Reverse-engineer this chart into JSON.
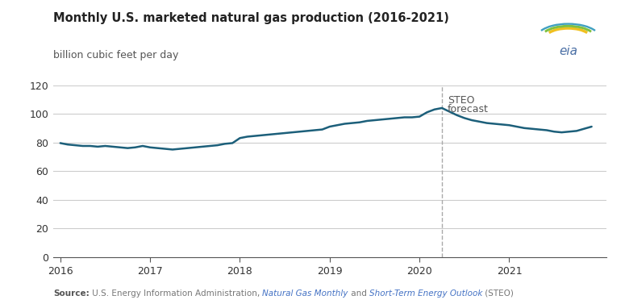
{
  "title": "Monthly U.S. marketed natural gas production (2016-2021)",
  "subtitle": "billion cubic feet per day",
  "line_color": "#1c5f7a",
  "background_color": "#ffffff",
  "grid_color": "#cccccc",
  "forecast_line_x": 2020.25,
  "forecast_label_line1": "STEO",
  "forecast_label_line2": "forecast",
  "ylim": [
    0,
    120
  ],
  "yticks": [
    0,
    20,
    40,
    60,
    80,
    100,
    120
  ],
  "xlim": [
    2015.92,
    2022.08
  ],
  "xticks": [
    2016,
    2017,
    2018,
    2019,
    2020,
    2021
  ],
  "data_x": [
    2016.0,
    2016.083,
    2016.167,
    2016.25,
    2016.333,
    2016.417,
    2016.5,
    2016.583,
    2016.667,
    2016.75,
    2016.833,
    2016.917,
    2017.0,
    2017.083,
    2017.167,
    2017.25,
    2017.333,
    2017.417,
    2017.5,
    2017.583,
    2017.667,
    2017.75,
    2017.833,
    2017.917,
    2018.0,
    2018.083,
    2018.167,
    2018.25,
    2018.333,
    2018.417,
    2018.5,
    2018.583,
    2018.667,
    2018.75,
    2018.833,
    2018.917,
    2019.0,
    2019.083,
    2019.167,
    2019.25,
    2019.333,
    2019.417,
    2019.5,
    2019.583,
    2019.667,
    2019.75,
    2019.833,
    2019.917,
    2020.0,
    2020.083,
    2020.167,
    2020.25,
    2020.333,
    2020.417,
    2020.5,
    2020.583,
    2020.667,
    2020.75,
    2020.833,
    2020.917,
    2021.0,
    2021.083,
    2021.167,
    2021.25,
    2021.333,
    2021.417,
    2021.5,
    2021.583,
    2021.667,
    2021.75,
    2021.833,
    2021.917
  ],
  "data_y": [
    79.5,
    78.5,
    78.0,
    77.5,
    77.5,
    77.0,
    77.5,
    77.0,
    76.5,
    76.0,
    76.5,
    77.5,
    76.5,
    76.0,
    75.5,
    75.0,
    75.5,
    76.0,
    76.5,
    77.0,
    77.5,
    78.0,
    79.0,
    79.5,
    83.0,
    84.0,
    84.5,
    85.0,
    85.5,
    86.0,
    86.5,
    87.0,
    87.5,
    88.0,
    88.5,
    89.0,
    91.0,
    92.0,
    93.0,
    93.5,
    94.0,
    95.0,
    95.5,
    96.0,
    96.5,
    97.0,
    97.5,
    97.5,
    98.0,
    101.0,
    103.0,
    104.0,
    101.5,
    99.0,
    97.0,
    95.5,
    94.5,
    93.5,
    93.0,
    92.5,
    92.0,
    91.0,
    90.0,
    89.5,
    89.0,
    88.5,
    87.5,
    87.0,
    87.5,
    88.0,
    89.5,
    91.0
  ],
  "source_parts": [
    {
      "text": "Source:",
      "color": "#555555",
      "bold": true,
      "italic": false
    },
    {
      "text": " U.S. Energy Information Administration, ",
      "color": "#777777",
      "bold": false,
      "italic": false
    },
    {
      "text": "Natural Gas Monthly",
      "color": "#4472c4",
      "bold": false,
      "italic": true
    },
    {
      "text": " and ",
      "color": "#777777",
      "bold": false,
      "italic": false
    },
    {
      "text": "Short-Term Energy Outlook",
      "color": "#4472c4",
      "bold": false,
      "italic": true
    },
    {
      "text": " (STEO)",
      "color": "#777777",
      "bold": false,
      "italic": false
    }
  ]
}
